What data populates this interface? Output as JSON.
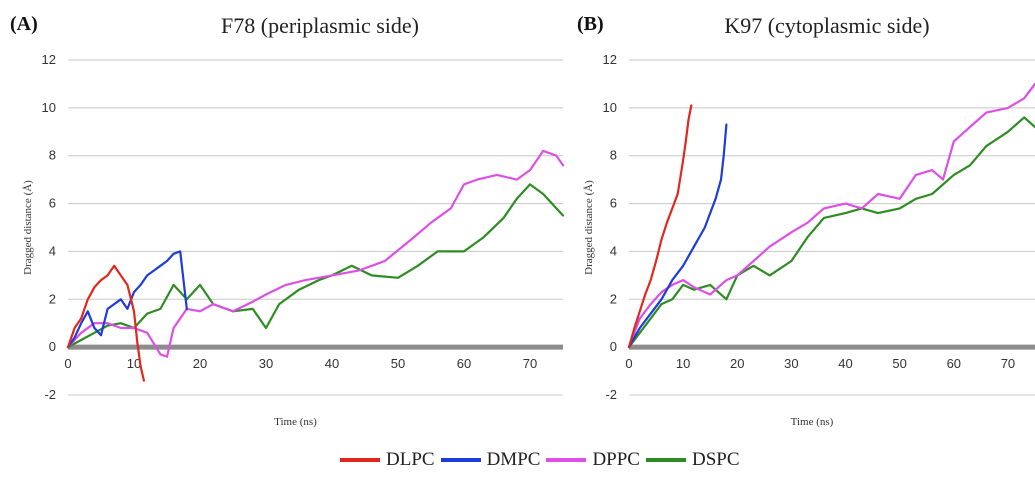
{
  "legend": [
    {
      "name": "DLPC",
      "color": "#e0281e"
    },
    {
      "name": "DMPC",
      "color": "#1e3cdc"
    },
    {
      "name": "DPPC",
      "color": "#dc50e6"
    },
    {
      "name": "DSPC",
      "color": "#2f8c23"
    }
  ],
  "chart_data": [
    {
      "type": "line",
      "panel_label": "(A)",
      "title": "F78 (periplasmic side)",
      "xlabel": "Time (ns)",
      "ylabel": "Dragged distance (Å)",
      "xlim": [
        0,
        75
      ],
      "ylim": [
        -2,
        12
      ],
      "xticks": [
        "0",
        "10",
        "20",
        "30",
        "40",
        "50",
        "60",
        "70"
      ],
      "yticks": [
        "-2",
        "0",
        "2",
        "4",
        "6",
        "8",
        "10",
        "12"
      ],
      "grid": true,
      "series": [
        {
          "name": "DLPC",
          "color": "#e0281e",
          "x": [
            0,
            1,
            2,
            3,
            4,
            5,
            6,
            7,
            8,
            9,
            10,
            10.5,
            11,
            11.5
          ],
          "y": [
            0,
            0.8,
            1.2,
            2.0,
            2.5,
            2.8,
            3.0,
            3.4,
            3.0,
            2.6,
            1.5,
            0.2,
            -0.8,
            -1.4
          ]
        },
        {
          "name": "DMPC",
          "color": "#1e3cdc",
          "x": [
            0,
            1,
            2,
            3,
            4,
            5,
            6,
            7,
            8,
            9,
            10,
            11,
            12,
            13,
            14,
            15,
            16,
            17,
            18
          ],
          "y": [
            0,
            0.4,
            1.0,
            1.5,
            0.8,
            0.5,
            1.6,
            1.8,
            2.0,
            1.6,
            2.3,
            2.6,
            3.0,
            3.2,
            3.4,
            3.6,
            3.9,
            4.0,
            1.6
          ]
        },
        {
          "name": "DPPC",
          "color": "#dc50e6",
          "x": [
            0,
            2,
            4,
            6,
            8,
            10,
            12,
            14,
            15,
            16,
            18,
            20,
            22,
            25,
            28,
            30,
            33,
            36,
            40,
            44,
            48,
            52,
            55,
            58,
            60,
            62,
            65,
            68,
            70,
            72,
            74,
            75
          ],
          "y": [
            0,
            0.6,
            1.0,
            1.0,
            0.8,
            0.8,
            0.6,
            -0.3,
            -0.4,
            0.8,
            1.6,
            1.5,
            1.8,
            1.5,
            1.9,
            2.2,
            2.6,
            2.8,
            3.0,
            3.2,
            3.6,
            4.5,
            5.2,
            5.8,
            6.8,
            7.0,
            7.2,
            7.0,
            7.4,
            8.2,
            8.0,
            7.6
          ]
        },
        {
          "name": "DSPC",
          "color": "#2f8c23",
          "x": [
            0,
            2,
            4,
            6,
            8,
            10,
            12,
            14,
            16,
            18,
            20,
            22,
            25,
            28,
            30,
            32,
            35,
            38,
            40,
            43,
            46,
            50,
            53,
            56,
            60,
            63,
            66,
            68,
            70,
            72,
            74,
            75
          ],
          "y": [
            0,
            0.3,
            0.6,
            0.9,
            1.0,
            0.8,
            1.4,
            1.6,
            2.6,
            2.0,
            2.6,
            1.8,
            1.5,
            1.6,
            0.8,
            1.8,
            2.4,
            2.8,
            3.0,
            3.4,
            3.0,
            2.9,
            3.4,
            4.0,
            4.0,
            4.6,
            5.4,
            6.2,
            6.8,
            6.4,
            5.8,
            5.5
          ]
        }
      ]
    },
    {
      "type": "line",
      "panel_label": "(B)",
      "title": "K97 (cytoplasmic side)",
      "xlabel": "Time (ns)",
      "ylabel": "Dragged distance (Å)",
      "xlim": [
        0,
        75
      ],
      "ylim": [
        -2,
        12
      ],
      "xticks": [
        "0",
        "10",
        "20",
        "30",
        "40",
        "50",
        "60",
        "70"
      ],
      "yticks": [
        "-2",
        "0",
        "2",
        "4",
        "6",
        "8",
        "10",
        "12"
      ],
      "grid": true,
      "series": [
        {
          "name": "DLPC",
          "color": "#e0281e",
          "x": [
            0,
            1,
            2,
            3,
            4,
            5,
            6,
            7,
            8,
            9,
            10,
            10.5,
            11,
            11.5
          ],
          "y": [
            0,
            0.8,
            1.5,
            2.2,
            2.8,
            3.6,
            4.5,
            5.2,
            5.8,
            6.4,
            7.8,
            8.6,
            9.5,
            10.1
          ]
        },
        {
          "name": "DMPC",
          "color": "#1e3cdc",
          "x": [
            0,
            2,
            4,
            6,
            8,
            10,
            12,
            14,
            15,
            16,
            17,
            17.5,
            18
          ],
          "y": [
            0,
            0.8,
            1.4,
            2.0,
            2.8,
            3.4,
            4.2,
            5.0,
            5.6,
            6.2,
            7.0,
            8.0,
            9.3
          ]
        },
        {
          "name": "DPPC",
          "color": "#dc50e6",
          "x": [
            0,
            2,
            4,
            6,
            8,
            10,
            12,
            15,
            18,
            20,
            23,
            26,
            30,
            33,
            36,
            40,
            43,
            46,
            50,
            53,
            56,
            58,
            60,
            63,
            66,
            70,
            73,
            75
          ],
          "y": [
            0,
            1.2,
            1.8,
            2.3,
            2.6,
            2.8,
            2.5,
            2.2,
            2.8,
            3.0,
            3.6,
            4.2,
            4.8,
            5.2,
            5.8,
            6.0,
            5.8,
            6.4,
            6.2,
            7.2,
            7.4,
            7.0,
            8.6,
            9.2,
            9.8,
            10.0,
            10.4,
            11.0
          ]
        },
        {
          "name": "DSPC",
          "color": "#2f8c23",
          "x": [
            0,
            2,
            4,
            6,
            8,
            10,
            12,
            15,
            18,
            20,
            23,
            26,
            30,
            33,
            36,
            40,
            43,
            46,
            50,
            53,
            56,
            60,
            63,
            66,
            70,
            73,
            75
          ],
          "y": [
            0,
            0.6,
            1.2,
            1.8,
            2.0,
            2.6,
            2.4,
            2.6,
            2.0,
            3.0,
            3.4,
            3.0,
            3.6,
            4.6,
            5.4,
            5.6,
            5.8,
            5.6,
            5.8,
            6.2,
            6.4,
            7.2,
            7.6,
            8.4,
            9.0,
            9.6,
            9.2
          ]
        }
      ]
    }
  ]
}
